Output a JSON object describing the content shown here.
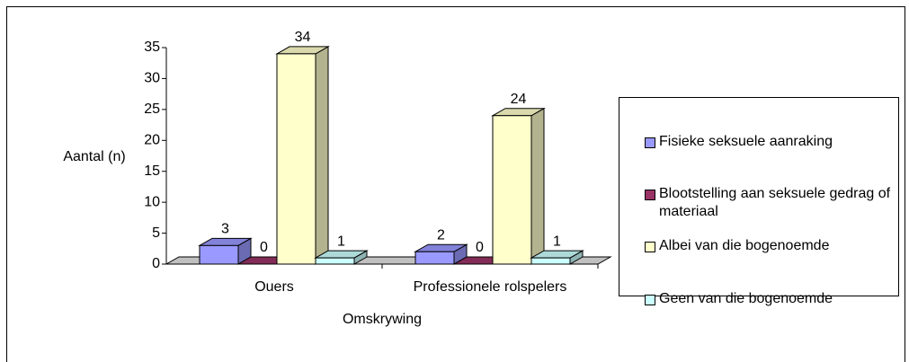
{
  "chart_data": {
    "type": "bar3d",
    "y_label": "Aantal (n)",
    "x_label": "Omskrywing",
    "categories": [
      "Ouers",
      "Professionele rolspelers"
    ],
    "series": [
      {
        "name": "Fisieke seksuele aanraking",
        "color": "#9999ff",
        "values": [
          3,
          2
        ]
      },
      {
        "name": "Blootstelling aan seksuele gedrag of materiaal",
        "color": "#993366",
        "values": [
          0,
          0
        ]
      },
      {
        "name": "Albei van die bogenoemde",
        "color": "#ffffcc",
        "values": [
          34,
          24
        ]
      },
      {
        "name": "Geen van die bogenoemde",
        "color": "#ccffff",
        "values": [
          1,
          1
        ]
      }
    ],
    "ylim": [
      0,
      35
    ],
    "yticks": [
      0,
      5,
      10,
      15,
      20,
      25,
      30,
      35
    ],
    "legend": "right"
  }
}
